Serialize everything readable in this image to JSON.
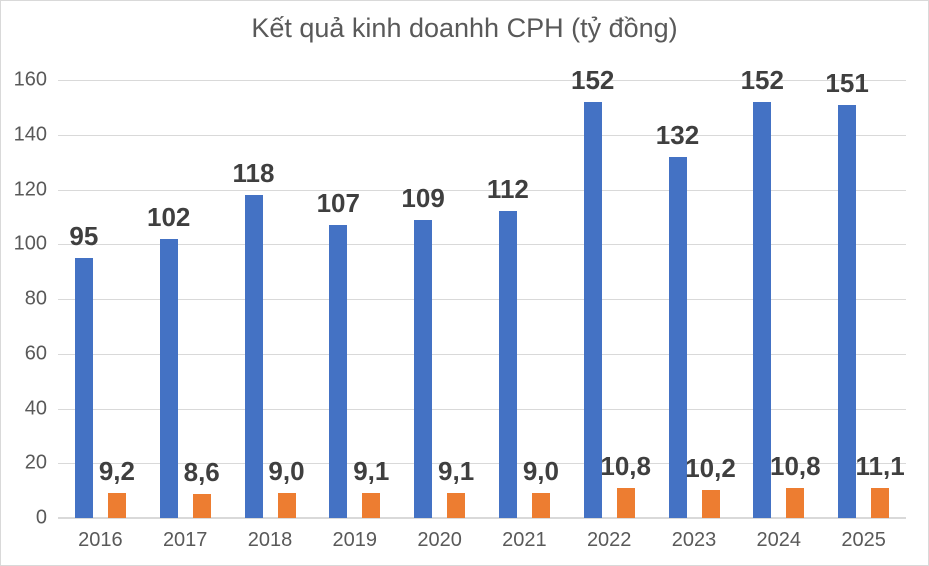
{
  "chart_data": {
    "type": "bar",
    "title": "Kết quả kinh doanhh CPH (tỷ đồng)",
    "categories": [
      "2016",
      "2017",
      "2018",
      "2019",
      "2020",
      "2021",
      "2022",
      "2023",
      "2024",
      "2025"
    ],
    "series": [
      {
        "color": "#4472C4",
        "values": [
          95,
          102,
          118,
          107,
          109,
          112,
          152,
          132,
          152,
          151
        ],
        "labels": [
          "95",
          "102",
          "118",
          "107",
          "109",
          "112",
          "152",
          "132",
          "152",
          "151"
        ]
      },
      {
        "color": "#ED7D31",
        "values": [
          9.2,
          8.6,
          9.0,
          9.1,
          9.1,
          9.0,
          10.8,
          10.2,
          10.8,
          11.1
        ],
        "labels": [
          "9,2",
          "8,6",
          "9,0",
          "9,1",
          "9,1",
          "9,0",
          "10,8",
          "10,2",
          "10,8",
          "11,1"
        ]
      }
    ],
    "ylim": [
      0,
      160
    ],
    "yticks": [
      0,
      20,
      40,
      60,
      80,
      100,
      120,
      140,
      160
    ],
    "xlabel": "",
    "ylabel": "",
    "grid": true,
    "legend": false,
    "colors": {
      "gridline": "#D9D9D9",
      "axis_text": "#595959",
      "title_text": "#595959",
      "data_label_text": "#3F3F3F",
      "background": "#FFFFFF",
      "border": "#D9D9D9"
    }
  }
}
